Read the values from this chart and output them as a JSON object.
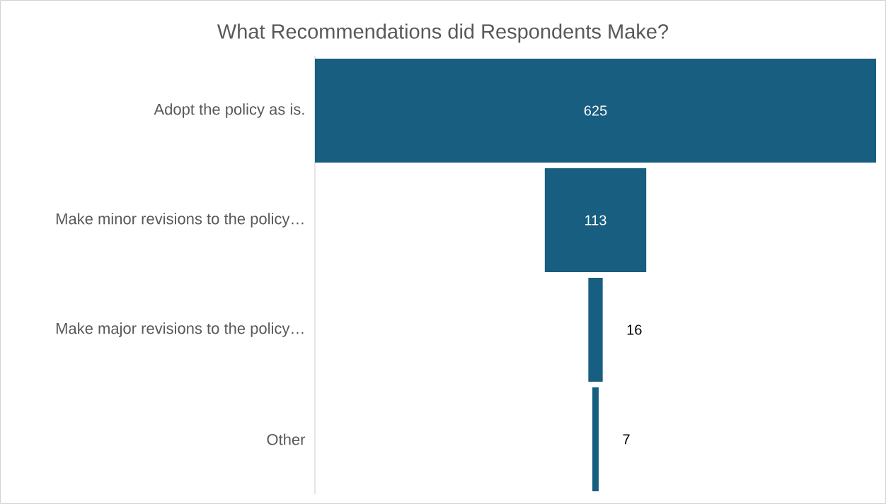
{
  "chart_data": {
    "type": "other",
    "title": "What Recommendations did Respondents Make?",
    "categories": [
      "Adopt the policy as is.",
      "Make minor revisions to the policy…",
      "Make major revisions to the policy…",
      "Other"
    ],
    "values": [
      625,
      113,
      16,
      7
    ],
    "color": "#175e80",
    "data_labels": true
  }
}
